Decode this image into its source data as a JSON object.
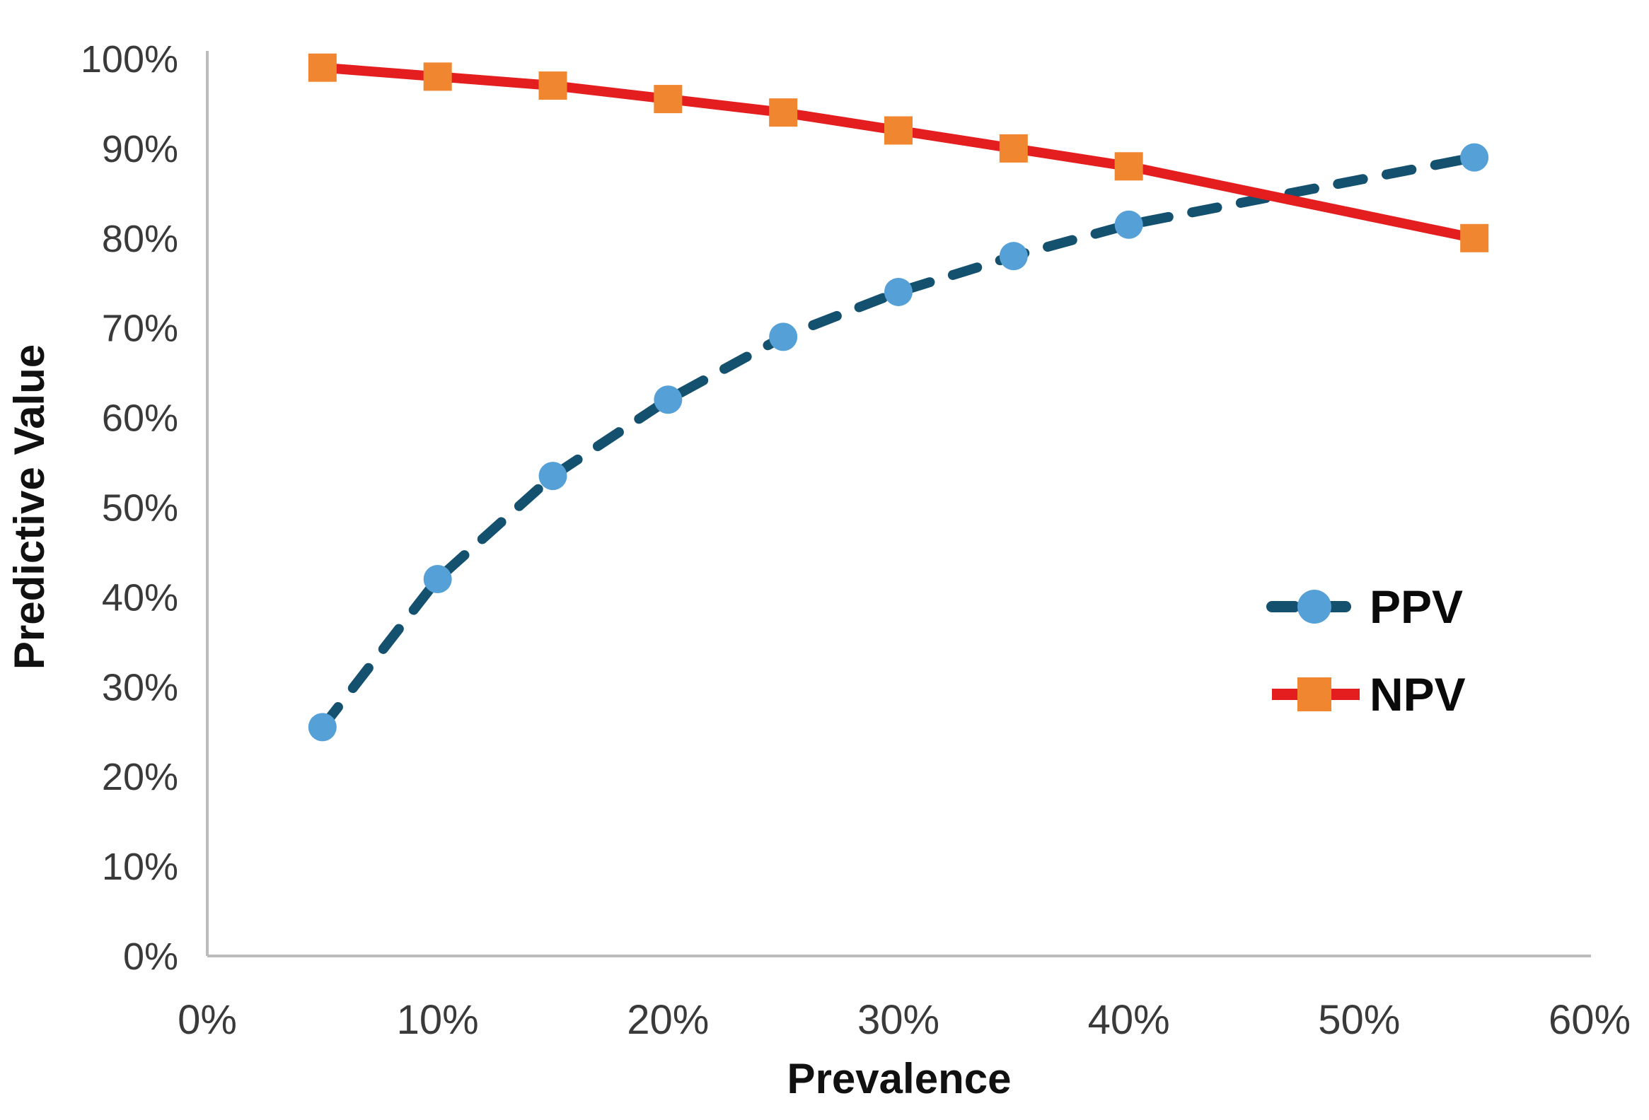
{
  "chart_data": {
    "type": "line",
    "title": "",
    "xlabel": "Prevalence",
    "ylabel": "Predictive Value",
    "x": [
      5,
      10,
      15,
      20,
      25,
      30,
      35,
      40,
      55
    ],
    "series": [
      {
        "name": "PPV",
        "values": [
          25.5,
          42,
          53.5,
          62,
          69,
          74,
          78,
          81.5,
          89
        ],
        "line_color": "#14516f",
        "marker_color": "#55a0d6",
        "line_style": "dashed",
        "marker": "circle"
      },
      {
        "name": "NPV",
        "values": [
          99,
          98,
          97,
          95.5,
          94,
          92,
          90,
          88,
          80
        ],
        "line_color": "#e41e1f",
        "marker_color": "#f0862f",
        "line_style": "solid",
        "marker": "square"
      }
    ],
    "xlim": [
      0,
      60
    ],
    "ylim": [
      0,
      100
    ],
    "x_tick_labels": [
      "0%",
      "10%",
      "20%",
      "30%",
      "40%",
      "50%",
      "60%"
    ],
    "y_tick_labels": [
      "0%",
      "10%",
      "20%",
      "30%",
      "40%",
      "50%",
      "60%",
      "70%",
      "80%",
      "90%",
      "100%"
    ],
    "grid": false,
    "legend_position": "right-middle",
    "axis_color": "#bcbcbc"
  }
}
